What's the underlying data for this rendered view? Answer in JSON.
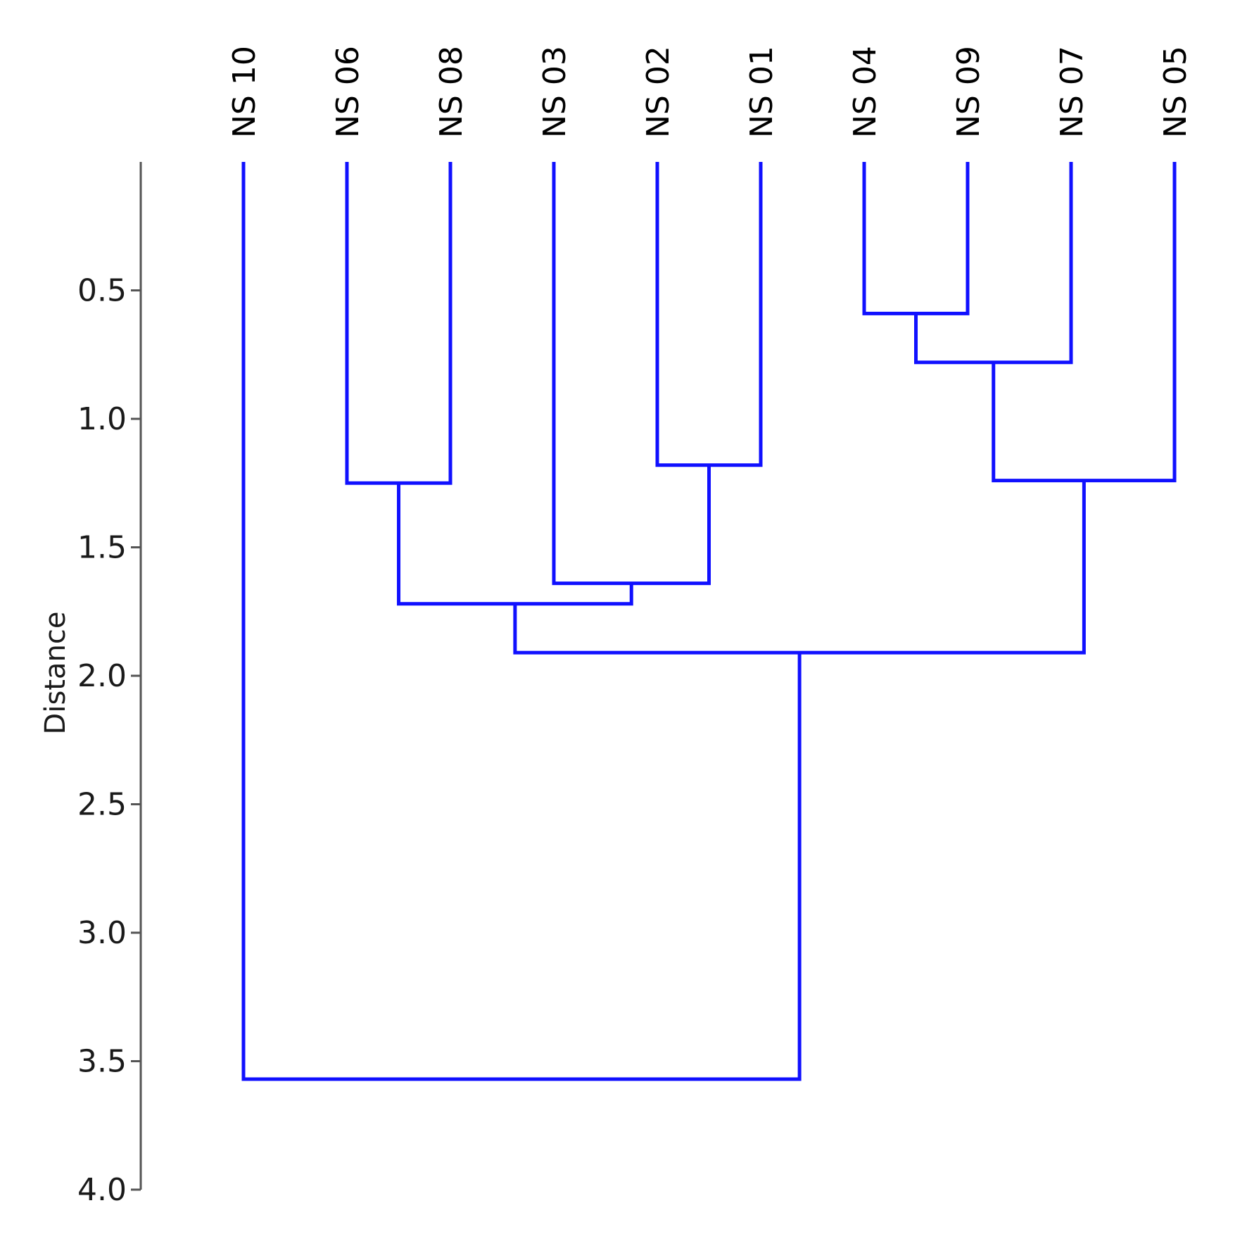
{
  "chart_data": {
    "type": "dendrogram",
    "ylabel": "Distance",
    "ylim": [
      0,
      4.0
    ],
    "y_ticks": [
      "0.5",
      "1.0",
      "1.5",
      "2.0",
      "2.5",
      "3.0",
      "3.5",
      "4.0"
    ],
    "y_tick_values": [
      0.5,
      1.0,
      1.5,
      2.0,
      2.5,
      3.0,
      3.5,
      4.0
    ],
    "leaves": [
      "NS 10",
      "NS 06",
      "NS 08",
      "NS 03",
      "NS 02",
      "NS 01",
      "NS 04",
      "NS 09",
      "NS 07",
      "NS 05"
    ],
    "merges": [
      {
        "left": "NS 04",
        "right": "NS 09",
        "distance": 0.59
      },
      {
        "left": "m0",
        "right": "NS 07",
        "distance": 0.78
      },
      {
        "left": "NS 02",
        "right": "NS 01",
        "distance": 1.18
      },
      {
        "left": "m1",
        "right": "NS 05",
        "distance": 1.24
      },
      {
        "left": "NS 06",
        "right": "NS 08",
        "distance": 1.25
      },
      {
        "left": "NS 03",
        "right": "m2",
        "distance": 1.64
      },
      {
        "left": "m4",
        "right": "m5",
        "distance": 1.72
      },
      {
        "left": "m6",
        "right": "m3",
        "distance": 1.91
      },
      {
        "left": "NS 10",
        "right": "m7",
        "distance": 3.57
      }
    ],
    "line_color": "#1010ff",
    "axis_color": "#555555"
  }
}
